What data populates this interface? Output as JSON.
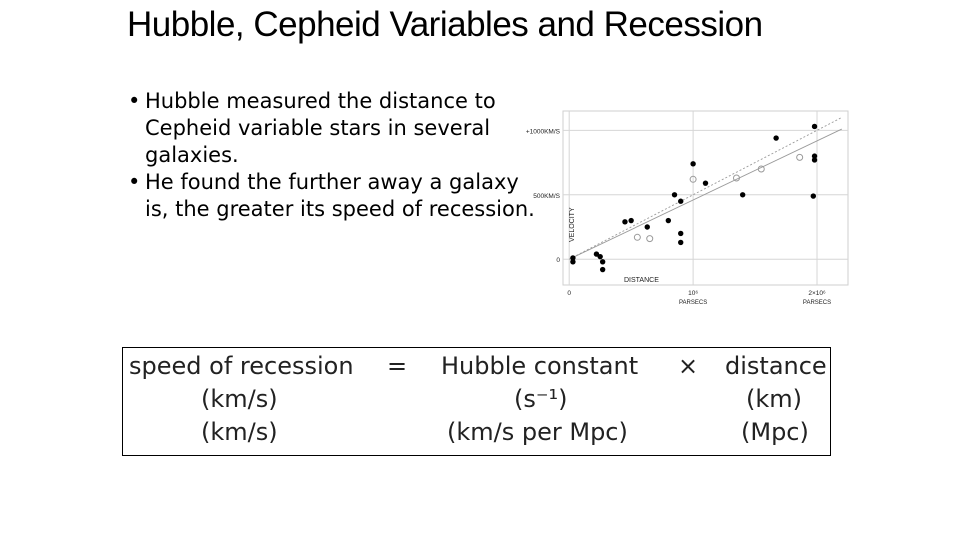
{
  "title": "Hubble, Cepheid Variables and Recession",
  "bullets": [
    {
      "symbol": "•",
      "lines": [
        "Hubble measured the distance to",
        "Cepheid variable stars in several",
        "galaxies."
      ]
    },
    {
      "symbol": "•",
      "lines": [
        "He found the further away a galaxy",
        "is, the greater its speed of recession."
      ]
    }
  ],
  "chart_data": {
    "type": "scatter",
    "xlabel": "DISTANCE",
    "ylabel": "VELOCITY",
    "x_ticks": [
      {
        "value": 0,
        "label": "0",
        "sublabel": ""
      },
      {
        "value": 1,
        "label": "10⁶",
        "sublabel": "PARSECS"
      },
      {
        "value": 2,
        "label": "2×10⁶",
        "sublabel": "PARSECS"
      }
    ],
    "y_ticks": [
      {
        "value": 0,
        "label": "0"
      },
      {
        "value": 500,
        "label": "500KM/S"
      },
      {
        "value": 1000,
        "label": "+1000KM/S"
      }
    ],
    "xlim": [
      -0.05,
      2.25
    ],
    "ylim": [
      -200,
      1150
    ],
    "grid": true,
    "series": [
      {
        "marker": "filled",
        "points": [
          [
            0.03,
            10
          ],
          [
            0.03,
            -20
          ],
          [
            0.22,
            40
          ],
          [
            0.27,
            -20
          ],
          [
            0.27,
            -80
          ],
          [
            0.25,
            20
          ],
          [
            0.45,
            290
          ],
          [
            0.5,
            300
          ],
          [
            0.63,
            250
          ],
          [
            0.8,
            300
          ],
          [
            0.9,
            200
          ],
          [
            0.9,
            130
          ],
          [
            0.9,
            450
          ],
          [
            0.85,
            500
          ],
          [
            1.0,
            740
          ],
          [
            1.1,
            590
          ],
          [
            1.4,
            500
          ],
          [
            1.67,
            940
          ],
          [
            1.98,
            1030
          ],
          [
            1.98,
            800
          ],
          [
            1.98,
            770
          ],
          [
            1.97,
            490
          ]
        ]
      },
      {
        "marker": "open",
        "points": [
          [
            0.55,
            170
          ],
          [
            0.65,
            160
          ],
          [
            1.0,
            620
          ],
          [
            1.35,
            630
          ],
          [
            1.55,
            700
          ],
          [
            1.86,
            790
          ]
        ]
      }
    ],
    "fit_lines": [
      {
        "style": "solid",
        "from": [
          0,
          0
        ],
        "to": [
          2.2,
          1010
        ]
      },
      {
        "style": "dashed",
        "from": [
          0,
          0
        ],
        "to": [
          2.2,
          1100
        ]
      }
    ]
  },
  "equation": {
    "rows": [
      [
        "speed of recession",
        "=",
        "Hubble constant",
        "×",
        "distance"
      ],
      [
        "(km/s)",
        "",
        "(s⁻¹)",
        "",
        "(km)"
      ],
      [
        "(km/s)",
        "",
        "(km/s per Mpc)",
        "",
        "(Mpc)"
      ]
    ]
  }
}
